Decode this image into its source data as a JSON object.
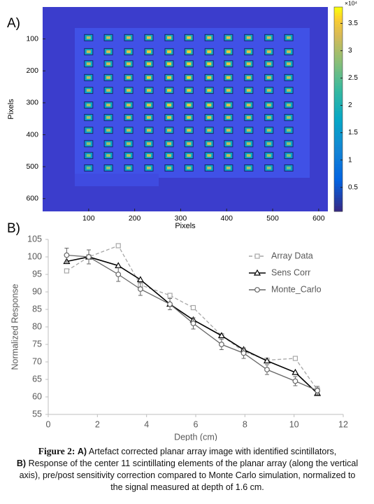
{
  "chart_data": [
    {
      "type": "heatmap",
      "panel_label": "A)",
      "xlabel": "Pixels",
      "ylabel": "Pixels",
      "x": [
        100,
        143,
        187,
        231,
        275,
        318,
        362,
        404,
        448,
        492,
        535
      ],
      "y": [
        96,
        140,
        178,
        221,
        261,
        307,
        346,
        386,
        428,
        465,
        504
      ],
      "values": [
        [
          3.1,
          3.2,
          3.3,
          3.4,
          3.4,
          3.5,
          3.4,
          3.4,
          3.3,
          3.2,
          3.1
        ],
        [
          3.2,
          3.3,
          3.4,
          3.5,
          3.5,
          3.6,
          3.5,
          3.5,
          3.4,
          3.3,
          3.2
        ],
        [
          3.2,
          3.3,
          3.4,
          3.5,
          3.6,
          3.6,
          3.6,
          3.5,
          3.4,
          3.3,
          3.2
        ],
        [
          3.1,
          3.3,
          3.4,
          3.5,
          3.5,
          3.6,
          3.5,
          3.5,
          3.4,
          3.3,
          3.1
        ],
        [
          3.1,
          3.2,
          3.4,
          3.4,
          3.5,
          3.5,
          3.5,
          3.4,
          3.4,
          3.2,
          3.1
        ],
        [
          3.0,
          3.2,
          3.3,
          3.4,
          3.5,
          3.5,
          3.5,
          3.4,
          3.3,
          3.2,
          3.0
        ],
        [
          3.0,
          3.1,
          3.3,
          3.3,
          3.4,
          3.4,
          3.4,
          3.3,
          3.3,
          3.1,
          3.0
        ],
        [
          2.9,
          3.1,
          3.2,
          3.3,
          3.3,
          3.4,
          3.3,
          3.3,
          3.2,
          3.1,
          2.9
        ],
        [
          2.9,
          3.0,
          3.1,
          3.2,
          3.3,
          3.3,
          3.3,
          3.2,
          3.1,
          3.0,
          2.9
        ],
        [
          2.8,
          3.0,
          3.1,
          3.2,
          3.2,
          3.2,
          3.2,
          3.2,
          3.1,
          3.0,
          2.8
        ],
        [
          2.7,
          2.9,
          3.0,
          3.1,
          3.1,
          3.1,
          3.1,
          3.1,
          3.0,
          2.9,
          2.7
        ]
      ],
      "xlim": [
        0,
        620
      ],
      "ylim": [
        0,
        640
      ],
      "y_inverted": true,
      "xticks": [
        100,
        200,
        300,
        400,
        500,
        600
      ],
      "yticks": [
        100,
        200,
        300,
        400,
        500,
        600
      ],
      "colormap": "parula",
      "clim": [
        0.06,
        3.8
      ],
      "cticks": [
        0.5,
        1,
        1.5,
        2,
        2.5,
        3,
        3.5
      ],
      "colorbar_label": "×10⁴"
    },
    {
      "type": "line",
      "panel_label": "B)",
      "xlabel": "Depth (cm)",
      "ylabel": "Normalized Response",
      "x": [
        0.75,
        1.65,
        2.85,
        3.75,
        4.95,
        5.9,
        7.05,
        7.95,
        8.9,
        10.05,
        10.95
      ],
      "series": [
        {
          "name": "Array Data",
          "color": "#a6a6a6",
          "linestyle": "dashed",
          "marker": "square",
          "values": [
            96,
            100,
            103.2,
            92,
            89,
            85.5,
            77.5,
            73,
            70.5,
            71,
            62
          ]
        },
        {
          "name": "Sens Corr",
          "color": "#000000",
          "linestyle": "solid",
          "marker": "triangle",
          "values": [
            98.7,
            100,
            97.5,
            93.5,
            86.5,
            82,
            77.5,
            73.5,
            70.3,
            67,
            61
          ]
        },
        {
          "name": "Monte_Carlo",
          "color": "#666666",
          "linestyle": "solid",
          "marker": "circle",
          "values": [
            100.5,
            100,
            95,
            90.8,
            86.5,
            81,
            75,
            72.5,
            67.8,
            64.5,
            61.8
          ],
          "errors": [
            2,
            2,
            2,
            1.8,
            1.6,
            1.6,
            1.5,
            1.5,
            1.4,
            1.3,
            1.2
          ]
        }
      ],
      "xlim": [
        0,
        12
      ],
      "ylim": [
        55,
        105
      ],
      "xticks": [
        0,
        2,
        4,
        6,
        8,
        10,
        12
      ],
      "yticks": [
        55,
        60,
        65,
        70,
        75,
        80,
        85,
        90,
        95,
        100,
        105
      ],
      "legend": "upper right"
    }
  ],
  "caption": [
    {
      "text": "Figure 2:",
      "style": "figure"
    },
    {
      "text": "A)",
      "style": "bold"
    },
    {
      "text": "Artefact corrected planar array image with identified scintillators,",
      "style": "plain"
    },
    {
      "text": "B)",
      "style": "bold"
    },
    {
      "text": "Response of the center 11 scintillating elements of the planar array (along the vertical axis), pre/post sensitivity correction compared to Monte Carlo simulation, normalized to the signal measured at depth of 1.6 cm.",
      "style": "plain"
    }
  ]
}
